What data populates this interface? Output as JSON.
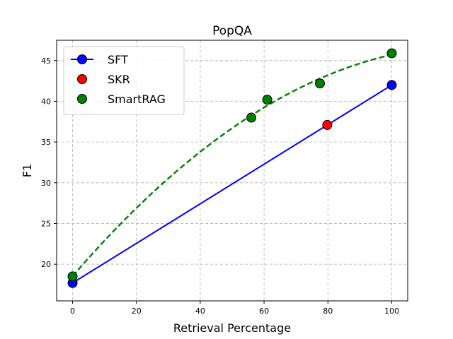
{
  "chart_data": {
    "type": "line",
    "title": "PopQA",
    "xlabel": "Retrieval Percentage",
    "ylabel": "F1",
    "xlim": [
      -5,
      105
    ],
    "ylim": [
      15.5,
      47.5
    ],
    "xticks": [
      0,
      20,
      40,
      60,
      80,
      100
    ],
    "yticks": [
      20,
      25,
      30,
      35,
      40,
      45
    ],
    "grid": true,
    "legend_position": "top-left",
    "series": [
      {
        "name": "SFT",
        "kind": "line-markers",
        "color": "#0000ff",
        "line_style": "solid",
        "points": [
          {
            "x": 0,
            "y": 17.7
          },
          {
            "x": 100,
            "y": 42.0
          }
        ]
      },
      {
        "name": "SKR",
        "kind": "scatter",
        "color": "#ff0000",
        "points": [
          {
            "x": 79.8,
            "y": 37.1
          }
        ]
      },
      {
        "name": "SmartRAG",
        "kind": "scatter",
        "color": "#008000",
        "points": [
          {
            "x": 0,
            "y": 18.5
          },
          {
            "x": 56,
            "y": 38.0
          },
          {
            "x": 61,
            "y": 40.2
          },
          {
            "x": 77.5,
            "y": 42.2
          },
          {
            "x": 100,
            "y": 45.9
          }
        ]
      }
    ],
    "trendline": {
      "series": "SmartRAG",
      "color": "#008000",
      "line_style": "dashed",
      "fit": "quadratic"
    }
  }
}
